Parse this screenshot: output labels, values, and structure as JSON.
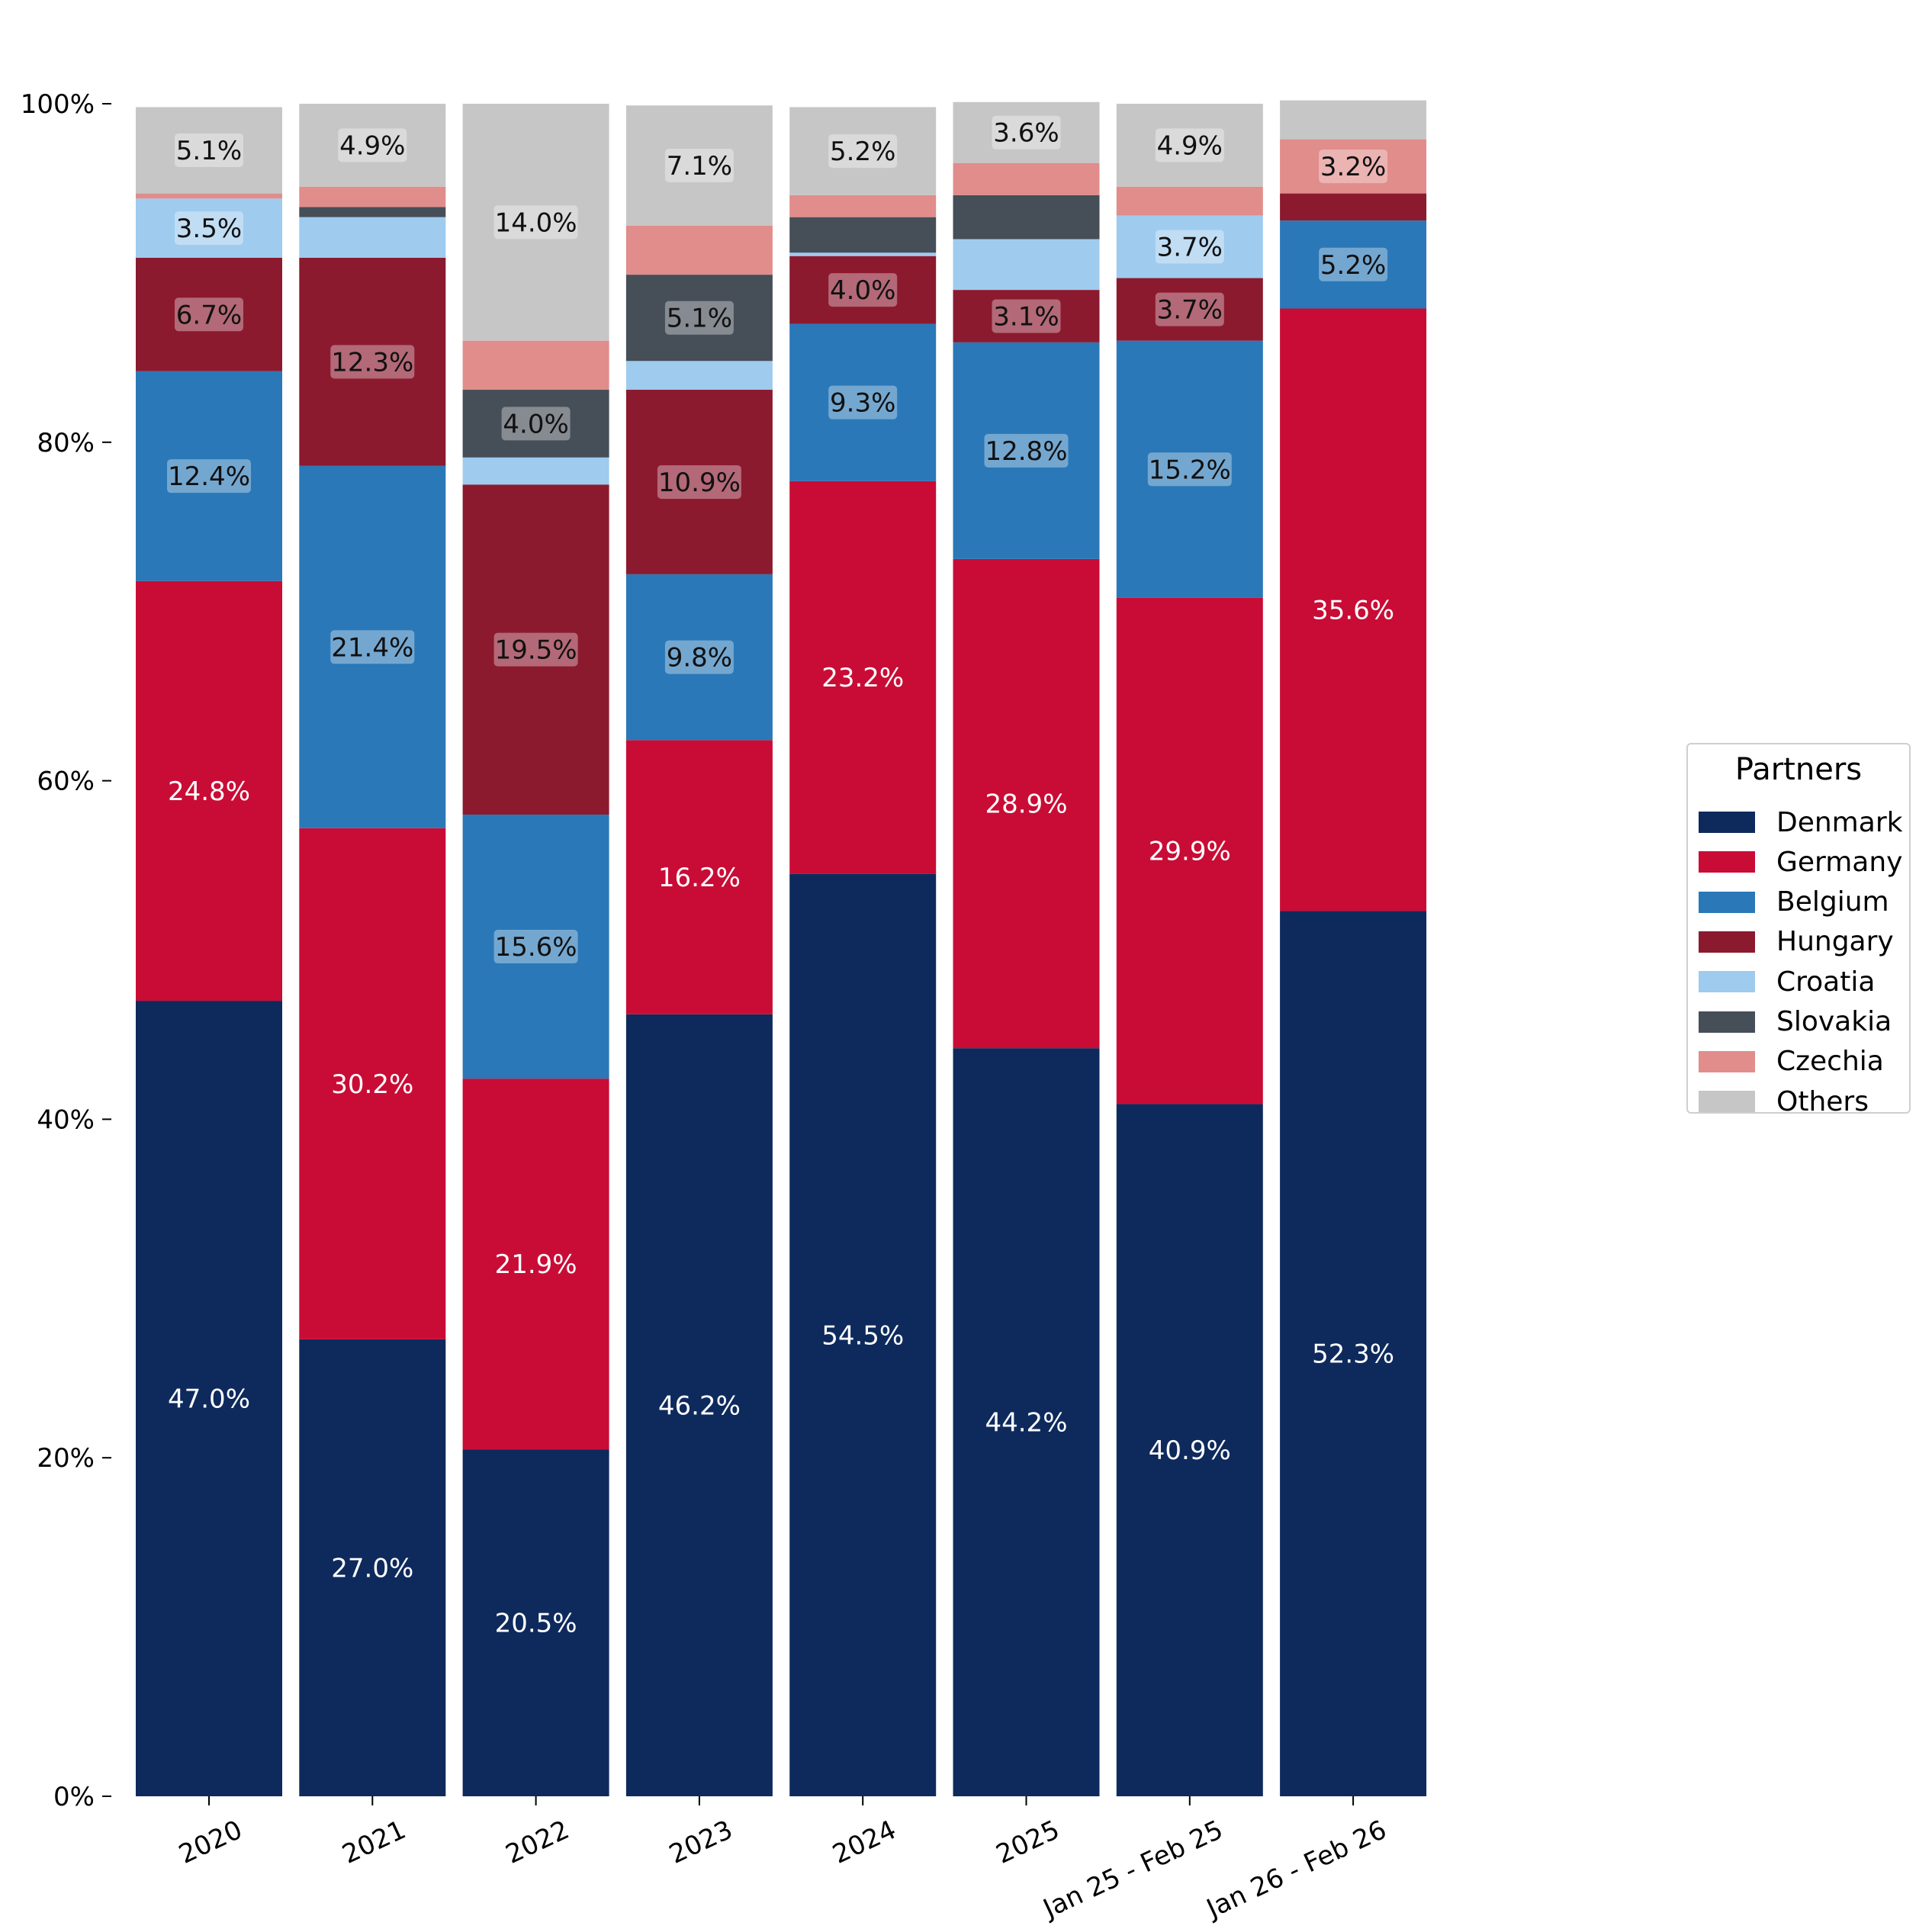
{
  "chart_data": {
    "type": "bar",
    "stacked": true,
    "categories": [
      "2020",
      "2021",
      "2022",
      "2023",
      "2024",
      "2025",
      "Jan 25 - Feb 25",
      "Jan 26 - Feb 26"
    ],
    "ylim": [
      0,
      1
    ],
    "yticks": [
      "0%",
      "20%",
      "40%",
      "60%",
      "80%",
      "100%"
    ],
    "legend": {
      "title": "Partners",
      "position": "center-right"
    },
    "grid": false,
    "series": [
      {
        "name": "Denmark",
        "color": "#0e2a5c",
        "values": [
          0.47,
          0.27,
          0.205,
          0.462,
          0.545,
          0.442,
          0.409,
          0.523
        ],
        "labels": [
          "47.0%",
          "27.0%",
          "20.5%",
          "46.2%",
          "54.5%",
          "44.2%",
          "40.9%",
          "52.3%"
        ]
      },
      {
        "name": "Germany",
        "color": "#c90c36",
        "values": [
          0.248,
          0.302,
          0.219,
          0.162,
          0.232,
          0.289,
          0.299,
          0.356
        ],
        "labels": [
          "24.8%",
          "30.2%",
          "21.9%",
          "16.2%",
          "23.2%",
          "28.9%",
          "29.9%",
          "35.6%"
        ]
      },
      {
        "name": "Belgium",
        "color": "#2a78b7",
        "values": [
          0.124,
          0.214,
          0.156,
          0.098,
          0.093,
          0.128,
          0.152,
          0.052
        ],
        "labels": [
          "12.4%",
          "21.4%",
          "15.6%",
          "9.8%",
          "9.3%",
          "12.8%",
          "15.2%",
          "5.2%"
        ]
      },
      {
        "name": "Hungary",
        "color": "#8b1a2f",
        "values": [
          0.067,
          0.123,
          0.195,
          0.109,
          0.04,
          0.031,
          0.037,
          0.016
        ],
        "labels": [
          "6.7%",
          "12.3%",
          "19.5%",
          "10.9%",
          "4.0%",
          "3.1%",
          "3.7%",
          ""
        ]
      },
      {
        "name": "Croatia",
        "color": "#9ecbee",
        "values": [
          0.035,
          0.024,
          0.016,
          0.017,
          0.002,
          0.03,
          0.037,
          0.0
        ],
        "labels": [
          "3.5%",
          "",
          "",
          "",
          "",
          "",
          "3.7%",
          ""
        ]
      },
      {
        "name": "Slovakia",
        "color": "#464e58",
        "values": [
          0.0,
          0.006,
          0.04,
          0.051,
          0.021,
          0.026,
          0.0,
          0.0
        ],
        "labels": [
          "",
          "",
          "4.0%",
          "5.1%",
          "",
          "",
          "",
          ""
        ]
      },
      {
        "name": "Czechia",
        "color": "#e08d8b",
        "values": [
          0.003,
          0.012,
          0.029,
          0.029,
          0.013,
          0.019,
          0.017,
          0.032
        ],
        "labels": [
          "",
          "",
          "",
          "",
          "",
          "",
          "",
          "3.2%"
        ]
      },
      {
        "name": "Others",
        "color": "#c6c6c6",
        "values": [
          0.051,
          0.049,
          0.14,
          0.071,
          0.052,
          0.036,
          0.049,
          0.023
        ],
        "labels": [
          "5.1%",
          "4.9%",
          "14.0%",
          "7.1%",
          "5.2%",
          "3.6%",
          "4.9%",
          ""
        ]
      }
    ]
  }
}
